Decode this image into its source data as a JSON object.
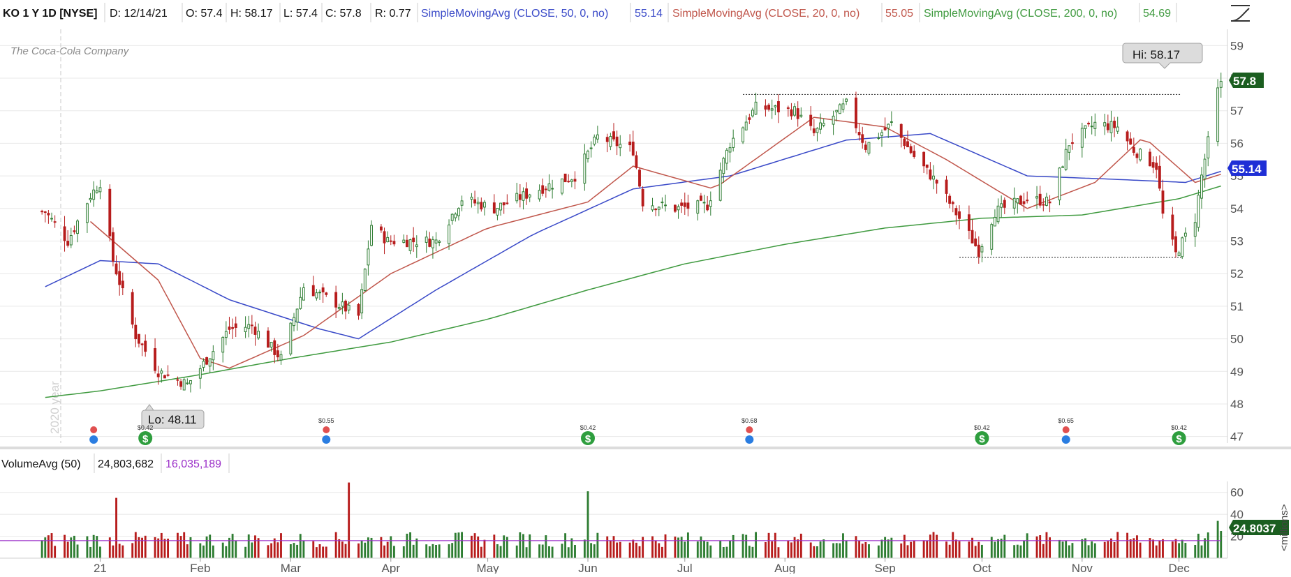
{
  "header": {
    "symbol": "KO 1 Y 1D [NYSE]",
    "date": "D: 12/14/21",
    "open": "O: 57.4",
    "high": "H: 58.17",
    "low": "L: 57.4",
    "close": "C: 57.8",
    "range": "R: 0.77",
    "sma50_label": "SimpleMovingAvg (CLOSE, 50, 0, no)",
    "sma50_value": "55.14",
    "sma20_label": "SimpleMovingAvg (CLOSE, 20, 0, no)",
    "sma20_value": "55.05",
    "sma200_label": "SimpleMovingAvg (CLOSE, 200, 0, no)",
    "sma200_value": "54.69"
  },
  "logo_text": "The Coca-Cola Company",
  "watermark": "2020 year",
  "hi_label": "Hi: 58.17",
  "lo_label": "Lo: 48.11",
  "price_badge": "57.8",
  "sma_badge": "55.14",
  "volume_header": {
    "label": "VolumeAvg (50)",
    "value": "24,803,682",
    "avg": "16,035,189"
  },
  "volume_badge": "24.8037",
  "volume_unit": "<millions>",
  "colors": {
    "up": "#2e7d32",
    "down": "#b71c1c",
    "sma50": "#3949c8",
    "sma20": "#c0564b",
    "sma200": "#3f9a3f",
    "volavg": "#9b30c8",
    "grid": "#e8e8e8"
  },
  "chart_data": [
    {
      "type": "candlestick",
      "title": "KO 1 Y 1D [NYSE]",
      "ylim": [
        46.8,
        59.5
      ],
      "y_ticks": [
        47,
        48,
        49,
        50,
        51,
        52,
        53,
        54,
        55,
        56,
        57,
        58,
        59
      ],
      "x_ticks": [
        "21",
        "Feb",
        "Mar",
        "Apr",
        "May",
        "Jun",
        "Jul",
        "Aug",
        "Sep",
        "Oct",
        "Nov",
        "Dec"
      ],
      "resistance": 57.5,
      "support": 52.5,
      "close_key_points": [
        [
          "2020-12-15",
          53.9
        ],
        [
          "2020-12-22",
          53.0
        ],
        [
          "2020-12-29",
          54.4
        ],
        [
          "2021-01-01",
          54.8
        ],
        [
          "2021-01-05",
          52.4
        ],
        [
          "2021-01-12",
          50.1
        ],
        [
          "2021-01-19",
          49.0
        ],
        [
          "2021-01-28",
          48.6
        ],
        [
          "2021-02-01",
          49.1
        ],
        [
          "2021-02-10",
          50.3
        ],
        [
          "2021-02-17",
          50.4
        ],
        [
          "2021-02-26",
          49.4
        ],
        [
          "2021-03-05",
          51.6
        ],
        [
          "2021-03-15",
          51.1
        ],
        [
          "2021-03-22",
          50.7
        ],
        [
          "2021-03-26",
          53.5
        ],
        [
          "2021-03-31",
          53.0
        ],
        [
          "2021-04-15",
          53.0
        ],
        [
          "2021-04-23",
          54.3
        ],
        [
          "2021-05-03",
          54.0
        ],
        [
          "2021-05-17",
          54.6
        ],
        [
          "2021-05-28",
          55.0
        ],
        [
          "2021-06-04",
          56.2
        ],
        [
          "2021-06-15",
          55.8
        ],
        [
          "2021-06-18",
          54.2
        ],
        [
          "2021-06-28",
          54.0
        ],
        [
          "2021-07-08",
          54.1
        ],
        [
          "2021-07-15",
          56.0
        ],
        [
          "2021-07-23",
          57.1
        ],
        [
          "2021-08-04",
          57.0
        ],
        [
          "2021-08-10",
          56.3
        ],
        [
          "2021-08-20",
          57.2
        ],
        [
          "2021-08-26",
          55.9
        ],
        [
          "2021-09-03",
          56.6
        ],
        [
          "2021-09-10",
          55.6
        ],
        [
          "2021-09-17",
          54.8
        ],
        [
          "2021-09-24",
          53.7
        ],
        [
          "2021-09-30",
          52.7
        ],
        [
          "2021-10-05",
          53.9
        ],
        [
          "2021-10-15",
          54.3
        ],
        [
          "2021-10-22",
          54.2
        ],
        [
          "2021-10-28",
          56.0
        ],
        [
          "2021-11-05",
          56.6
        ],
        [
          "2021-11-12",
          56.5
        ],
        [
          "2021-11-17",
          55.8
        ],
        [
          "2021-11-24",
          55.3
        ],
        [
          "2021-11-26",
          53.8
        ],
        [
          "2021-11-30",
          52.6
        ],
        [
          "2021-12-06",
          53.7
        ],
        [
          "2021-12-08",
          55.0
        ],
        [
          "2021-12-13",
          57.6
        ],
        [
          "2021-12-14",
          57.8
        ]
      ],
      "series": [
        {
          "name": "SimpleMovingAvg (CLOSE, 50, 0, no)",
          "end_value": 55.14,
          "points": [
            [
              "2020-12-15",
              51.6
            ],
            [
              "2021-01-01",
              52.4
            ],
            [
              "2021-01-19",
              52.3
            ],
            [
              "2021-02-10",
              51.2
            ],
            [
              "2021-03-10",
              50.3
            ],
            [
              "2021-03-22",
              50.0
            ],
            [
              "2021-04-15",
              51.5
            ],
            [
              "2021-05-15",
              53.2
            ],
            [
              "2021-06-15",
              54.6
            ],
            [
              "2021-07-15",
              55.0
            ],
            [
              "2021-08-20",
              56.1
            ],
            [
              "2021-09-15",
              56.3
            ],
            [
              "2021-10-15",
              55.0
            ],
            [
              "2021-11-10",
              54.9
            ],
            [
              "2021-12-03",
              54.8
            ],
            [
              "2021-12-14",
              55.14
            ]
          ]
        },
        {
          "name": "SimpleMovingAvg (CLOSE, 20, 0, no)",
          "end_value": 55.05,
          "points": [
            [
              "2020-12-29",
              53.6
            ],
            [
              "2021-01-19",
              51.8
            ],
            [
              "2021-02-01",
              49.4
            ],
            [
              "2021-02-10",
              49.1
            ],
            [
              "2021-03-05",
              50.1
            ],
            [
              "2021-04-01",
              52.0
            ],
            [
              "2021-05-01",
              53.4
            ],
            [
              "2021-06-01",
              54.2
            ],
            [
              "2021-06-15",
              55.3
            ],
            [
              "2021-07-10",
              54.6
            ],
            [
              "2021-08-10",
              56.8
            ],
            [
              "2021-09-01",
              56.5
            ],
            [
              "2021-09-20",
              55.5
            ],
            [
              "2021-10-15",
              54.0
            ],
            [
              "2021-11-05",
              54.8
            ],
            [
              "2021-11-20",
              56.2
            ],
            [
              "2021-12-06",
              54.8
            ],
            [
              "2021-12-14",
              55.05
            ]
          ]
        },
        {
          "name": "SimpleMovingAvg (CLOSE, 200, 0, no)",
          "end_value": 54.69,
          "points": [
            [
              "2020-12-15",
              48.2
            ],
            [
              "2021-01-01",
              48.4
            ],
            [
              "2021-02-01",
              48.9
            ],
            [
              "2021-03-01",
              49.4
            ],
            [
              "2021-04-01",
              49.9
            ],
            [
              "2021-05-01",
              50.6
            ],
            [
              "2021-06-01",
              51.5
            ],
            [
              "2021-07-01",
              52.3
            ],
            [
              "2021-08-01",
              52.9
            ],
            [
              "2021-09-01",
              53.4
            ],
            [
              "2021-10-01",
              53.7
            ],
            [
              "2021-11-01",
              53.8
            ],
            [
              "2021-12-01",
              54.3
            ],
            [
              "2021-12-14",
              54.69
            ]
          ]
        }
      ],
      "annotations": {
        "high": {
          "date": "2021-12-14",
          "value": 58.17
        },
        "low": {
          "date": "2021-01-29",
          "value": 48.11
        }
      },
      "dividends": [
        {
          "date": "2020-12-30",
          "label": "",
          "kind": "ex-date"
        },
        {
          "date": "2021-01-15",
          "label": "$0.42",
          "kind": "payment"
        },
        {
          "date": "2021-03-12",
          "label": "$0.55",
          "kind": "earnings"
        },
        {
          "date": "2021-06-01",
          "label": "$0.42",
          "kind": "payment"
        },
        {
          "date": "2021-07-21",
          "label": "$0.68",
          "kind": "earnings"
        },
        {
          "date": "2021-10-01",
          "label": "$0.42",
          "kind": "payment"
        },
        {
          "date": "2021-10-27",
          "label": "$0.65",
          "kind": "earnings"
        },
        {
          "date": "2021-12-01",
          "label": "$0.42",
          "kind": "payment"
        }
      ]
    },
    {
      "type": "bar",
      "title": "VolumeAvg (50)",
      "ylabel": "<millions>",
      "ylim": [
        0,
        70
      ],
      "y_ticks": [
        20,
        40,
        60
      ],
      "spikes": [
        [
          "2021-01-06",
          55
        ],
        [
          "2021-03-19",
          69
        ],
        [
          "2021-06-01",
          61
        ],
        [
          "2021-12-13",
          34
        ]
      ],
      "avg_level": 16.0,
      "last_value": 24.8037
    }
  ]
}
